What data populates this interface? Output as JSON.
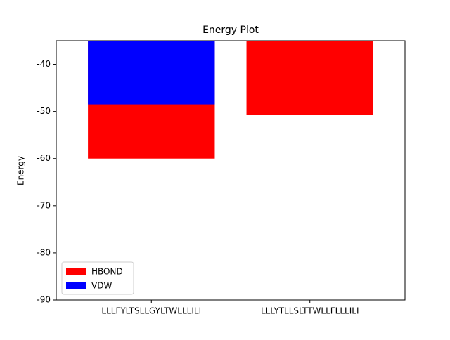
{
  "chart_data": {
    "type": "bar",
    "title": "Energy Plot",
    "y_label": "Energy",
    "categories": [
      "LLLFYLTSLLGYLTWLLLILI",
      "LLLYTLLSLTTWLLFLLLILI"
    ],
    "series": [
      {
        "name": "HBOND",
        "color": "#ff0000",
        "values": [
          -60,
          -50.7
        ]
      },
      {
        "name": "VDW",
        "color": "#0000ff",
        "values": [
          -48.5,
          null
        ]
      }
    ],
    "ylim": [
      -90,
      -35
    ],
    "yticks": [
      -90,
      -80,
      -70,
      -60,
      -50,
      -40
    ],
    "legend": "lower left"
  }
}
